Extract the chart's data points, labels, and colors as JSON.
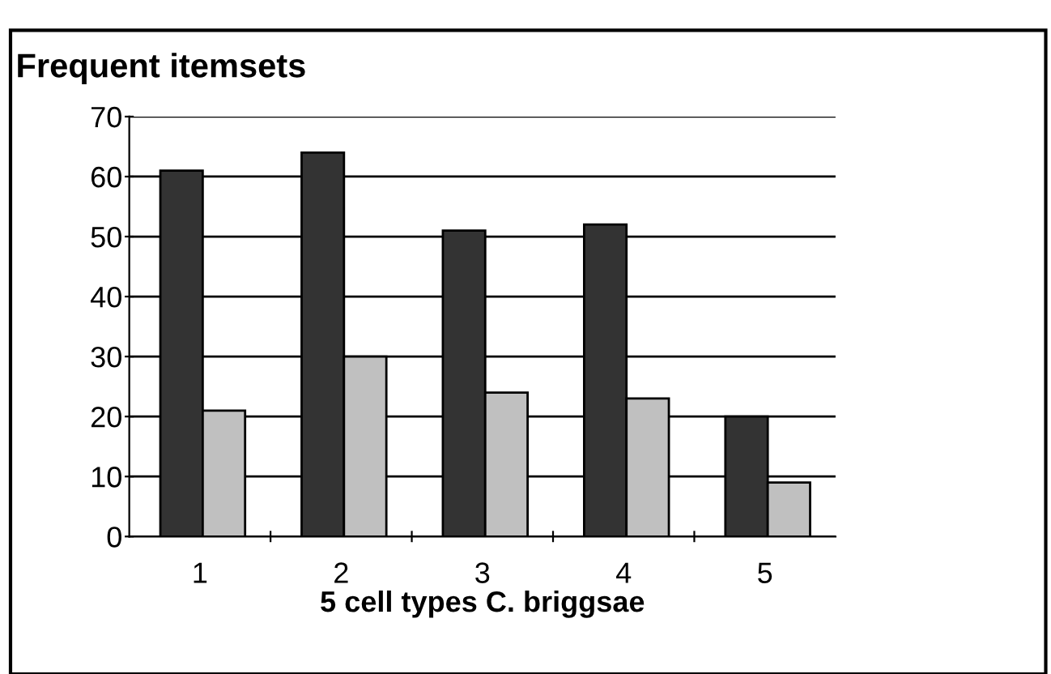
{
  "chart_data": {
    "type": "bar",
    "title": "Frequent itemsets",
    "xlabel": "5 cell types C. briggsae",
    "categories": [
      "1",
      "2",
      "3",
      "4",
      "5"
    ],
    "series": [
      {
        "color": "#333333",
        "values": [
          61,
          64,
          51,
          52,
          20
        ]
      },
      {
        "color": "#c0c0c0",
        "values": [
          21,
          30,
          24,
          23,
          9
        ]
      }
    ],
    "ylim": [
      0,
      70
    ],
    "yticks": [
      0,
      10,
      20,
      30,
      40,
      50,
      60,
      70
    ],
    "grid": "y",
    "legend": false
  }
}
